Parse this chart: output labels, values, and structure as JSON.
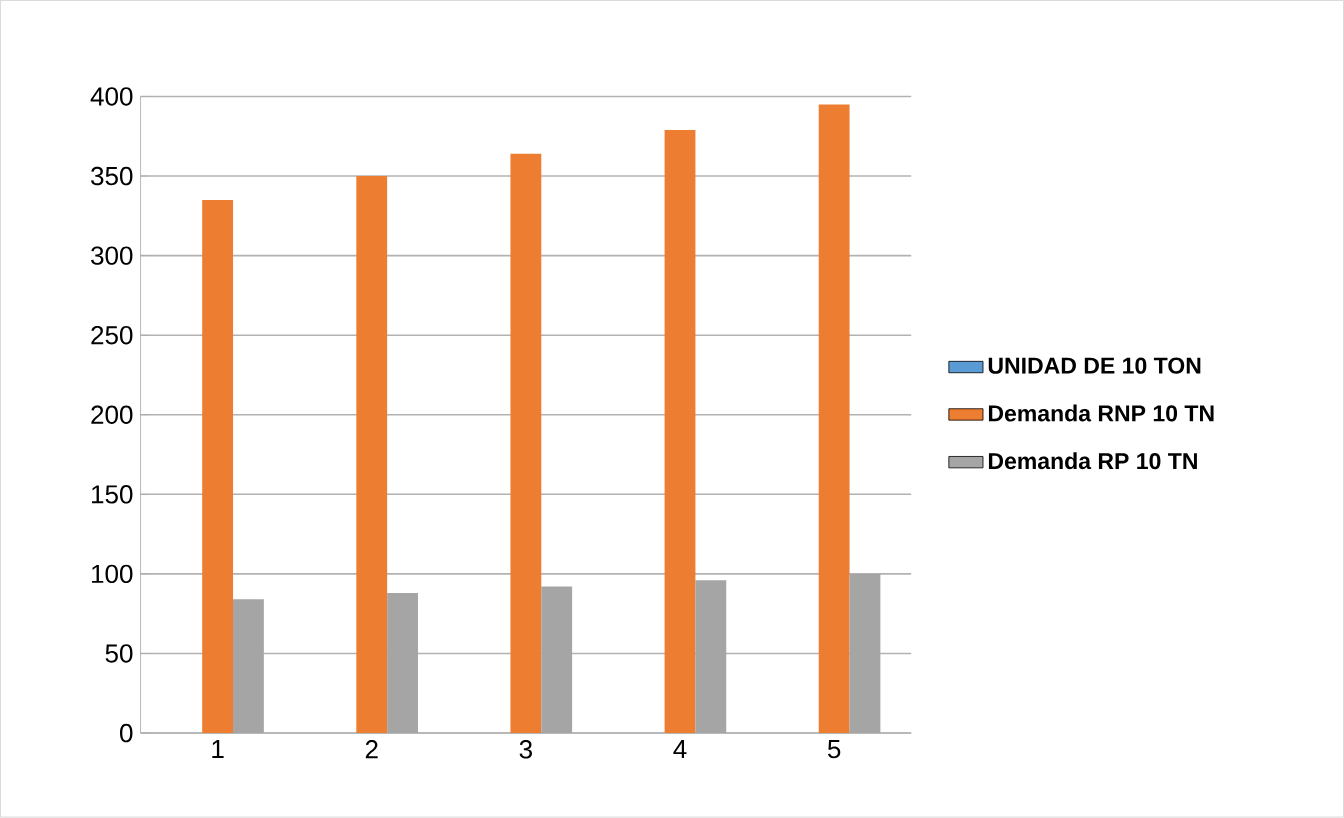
{
  "chart_data": {
    "type": "bar",
    "categories": [
      "1",
      "2",
      "3",
      "4",
      "5"
    ],
    "series": [
      {
        "name": "UNIDAD DE 10 TON",
        "color": "#5b9bd5",
        "values": [
          null,
          null,
          null,
          null,
          null
        ]
      },
      {
        "name": "Demanda RNP 10 TN",
        "color": "#ed7d31",
        "values": [
          335,
          350,
          364,
          379,
          395
        ]
      },
      {
        "name": "Demanda RP 10 TN",
        "color": "#a5a5a5",
        "values": [
          84,
          88,
          92,
          96,
          100
        ]
      }
    ],
    "ylim": [
      0,
      400
    ],
    "yticks": [
      0,
      50,
      100,
      150,
      200,
      250,
      300,
      350,
      400
    ],
    "grid": "y",
    "legend": "right"
  }
}
